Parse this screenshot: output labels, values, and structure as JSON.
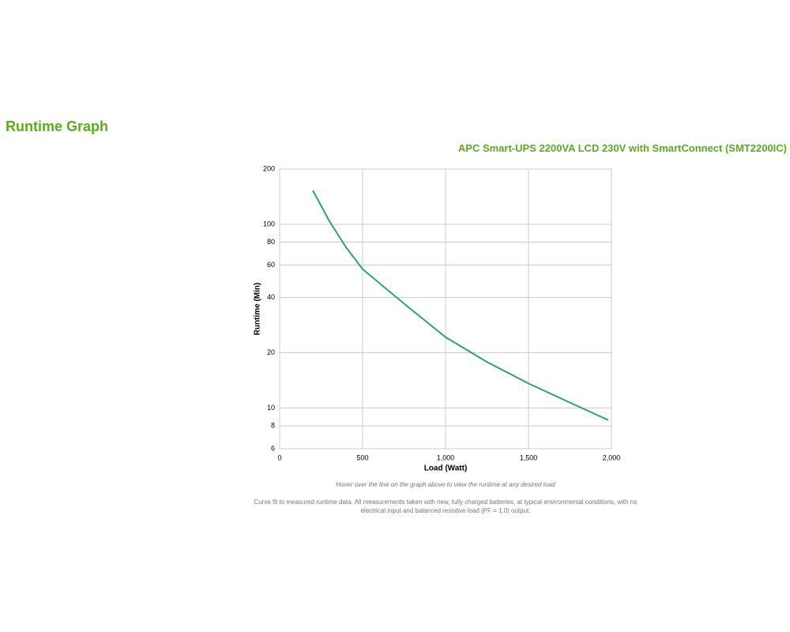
{
  "page": {
    "heading": "Runtime Graph",
    "hover_note": "Hover over the line on the graph above to view the runtime at any desired load",
    "footnote": "Curve fit to measured runtime data. All measurements taken with new, fully charged batteries, at typical environmental conditions, with no electrical input and balanced resistive load (PF = 1.0) output."
  },
  "chart_data": {
    "type": "line",
    "title": "APC Smart-UPS 2200VA LCD 230V with SmartConnect (SMT2200IC)",
    "x_label": "Load (Watt)",
    "y_label": "Runtime (Min)",
    "x": [
      200,
      300,
      400,
      500,
      750,
      1000,
      1250,
      1500,
      1750,
      1980
    ],
    "series": [
      {
        "name": "Runtime",
        "color": "#2ea55f",
        "values": [
          153,
          104,
          75,
          57,
          37,
          24.3,
          17.8,
          13.6,
          10.7,
          8.6
        ]
      }
    ],
    "xlim": [
      0,
      2000
    ],
    "xticks": [
      0,
      500,
      {
        "value": 1000,
        "label": "1,000"
      },
      {
        "value": 1500,
        "label": "1,500"
      },
      {
        "value": 2000,
        "label": "2,000"
      }
    ],
    "ylim": [
      6,
      200
    ],
    "yticks": [
      6,
      8,
      10,
      20,
      40,
      60,
      80,
      100,
      200
    ],
    "log_y": true,
    "grid": true
  }
}
